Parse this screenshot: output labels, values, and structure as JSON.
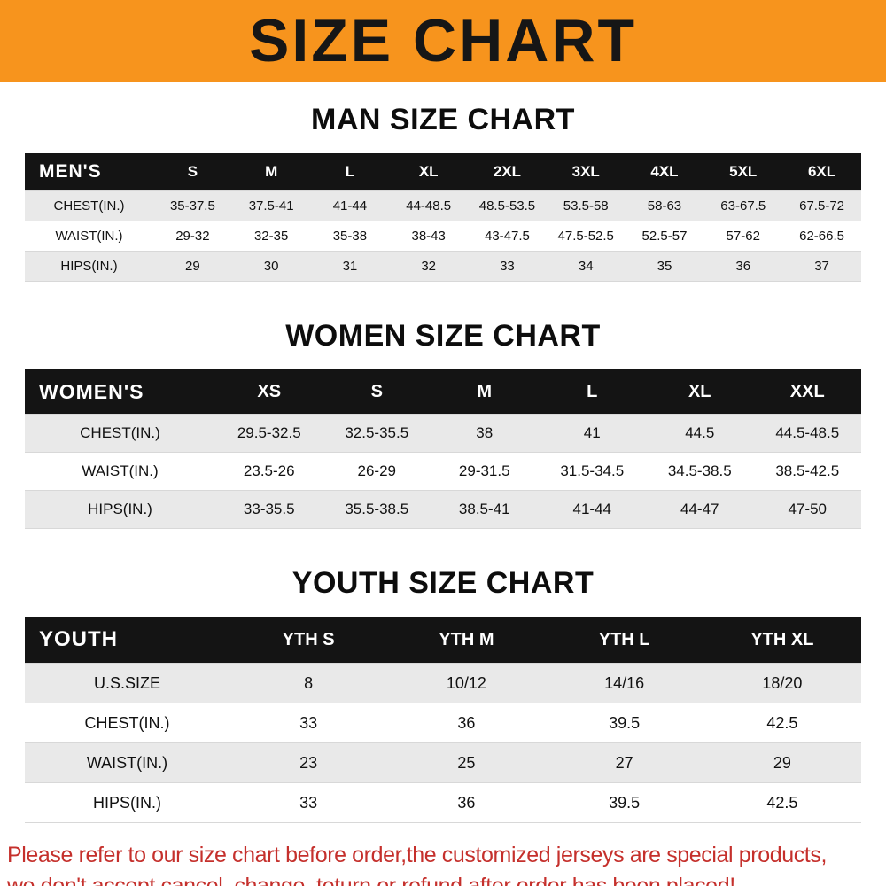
{
  "banner": {
    "title": "SIZE CHART",
    "bg_color": "#f7941d"
  },
  "tables": [
    {
      "heading": "MAN SIZE CHART",
      "header_label": "MEN'S",
      "columns": [
        "S",
        "M",
        "L",
        "XL",
        "2XL",
        "3XL",
        "4XL",
        "5XL",
        "6XL"
      ],
      "rows": [
        {
          "label": "CHEST(IN.)",
          "values": [
            "35-37.5",
            "37.5-41",
            "41-44",
            "44-48.5",
            "48.5-53.5",
            "53.5-58",
            "58-63",
            "63-67.5",
            "67.5-72"
          ]
        },
        {
          "label": "WAIST(IN.)",
          "values": [
            "29-32",
            "32-35",
            "35-38",
            "38-43",
            "43-47.5",
            "47.5-52.5",
            "52.5-57",
            "57-62",
            "62-66.5"
          ]
        },
        {
          "label": "HIPS(IN.)",
          "values": [
            "29",
            "30",
            "31",
            "32",
            "33",
            "34",
            "35",
            "36",
            "37"
          ]
        }
      ]
    },
    {
      "heading": "WOMEN SIZE CHART",
      "header_label": "WOMEN'S",
      "columns": [
        "XS",
        "S",
        "M",
        "L",
        "XL",
        "XXL"
      ],
      "rows": [
        {
          "label": "CHEST(IN.)",
          "values": [
            "29.5-32.5",
            "32.5-35.5",
            "38",
            "41",
            "44.5",
            "44.5-48.5"
          ]
        },
        {
          "label": "WAIST(IN.)",
          "values": [
            "23.5-26",
            "26-29",
            "29-31.5",
            "31.5-34.5",
            "34.5-38.5",
            "38.5-42.5"
          ]
        },
        {
          "label": "HIPS(IN.)",
          "values": [
            "33-35.5",
            "35.5-38.5",
            "38.5-41",
            "41-44",
            "44-47",
            "47-50"
          ]
        }
      ]
    },
    {
      "heading": "YOUTH SIZE CHART",
      "header_label": "YOUTH",
      "columns": [
        "YTH S",
        "YTH M",
        "YTH L",
        "YTH XL"
      ],
      "rows": [
        {
          "label": "U.S.SIZE",
          "values": [
            "8",
            "10/12",
            "14/16",
            "18/20"
          ]
        },
        {
          "label": "CHEST(IN.)",
          "values": [
            "33",
            "36",
            "39.5",
            "42.5"
          ]
        },
        {
          "label": "WAIST(IN.)",
          "values": [
            "23",
            "25",
            "27",
            "29"
          ]
        },
        {
          "label": "HIPS(IN.)",
          "values": [
            "33",
            "36",
            "39.5",
            "42.5"
          ]
        }
      ]
    }
  ],
  "footer": {
    "line1": "Please refer to our size chart before order,the customized jerseys are special products,",
    "line2": "we don't accept cancel, change, teturn or refund after order has been placed!",
    "text_color": "#c5302c"
  }
}
